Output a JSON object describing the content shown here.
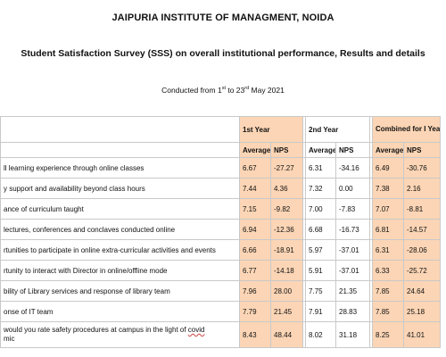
{
  "header": {
    "institute": "JAIPURIA INSTITUTE OF MANAGMENT, NOIDA",
    "survey_title": "Student Satisfaction Survey (SSS) on overall institutional performance, Results and details",
    "conducted_prefix": "Conducted from 1",
    "conducted_sup1": "st",
    "conducted_mid": " to 23",
    "conducted_sup2": "rd",
    "conducted_suffix": " May 2021"
  },
  "colors": {
    "peach": "#fbd5b5",
    "grid": "#c9c9c9"
  },
  "table": {
    "group_headers": {
      "first_year": "1st Year",
      "second_year": "2nd Year",
      "combined": "Combined for I Year and II Year"
    },
    "sub_headers": {
      "average": "Average",
      "nps": "NPS"
    },
    "rows": [
      {
        "param": "ll learning experience through online classes",
        "y1_avg": "6.67",
        "y1_nps": "-27.27",
        "y2_avg": "6.31",
        "y2_nps": "-34.16",
        "c_avg": "6.49",
        "c_nps": "-30.76"
      },
      {
        "param": "y support and availability beyond class hours",
        "y1_avg": "7.44",
        "y1_nps": "4.36",
        "y2_avg": "7.32",
        "y2_nps": "0.00",
        "c_avg": "7.38",
        "c_nps": "2.16"
      },
      {
        "param": "ance of curriculum taught",
        "y1_avg": "7.15",
        "y1_nps": "-9.82",
        "y2_avg": "7.00",
        "y2_nps": "-7.83",
        "c_avg": "7.07",
        "c_nps": "-8.81"
      },
      {
        "param": " lectures, conferences and conclaves conducted online",
        "y1_avg": "6.94",
        "y1_nps": "-12.36",
        "y2_avg": "6.68",
        "y2_nps": "-16.73",
        "c_avg": "6.81",
        "c_nps": "-14.57"
      },
      {
        "param": "rtunities to participate in online extra-curricular activities and events",
        "y1_avg": "6.66",
        "y1_nps": "-18.91",
        "y2_avg": "5.97",
        "y2_nps": "-37.01",
        "c_avg": "6.31",
        "c_nps": "-28.06"
      },
      {
        "param": "rtunity to interact with Director in online/offline mode",
        "y1_avg": "6.77",
        "y1_nps": "-14.18",
        "y2_avg": "5.91",
        "y2_nps": "-37.01",
        "c_avg": "6.33",
        "c_nps": "-25.72"
      },
      {
        "param": "bility of Library services and response of library team",
        "y1_avg": "7.96",
        "y1_nps": "28.00",
        "y2_avg": "7.75",
        "y2_nps": "21.35",
        "c_avg": "7.85",
        "c_nps": "24.64"
      },
      {
        "param": "onse of IT team",
        "y1_avg": "7.79",
        "y1_nps": "21.45",
        "y2_avg": "7.91",
        "y2_nps": "28.83",
        "c_avg": "7.85",
        "c_nps": "25.18"
      },
      {
        "param_line1": "would you rate safety procedures at campus in the light of ",
        "param_underlined": "covid",
        "param_line2": "mic",
        "y1_avg": "8.43",
        "y1_nps": "48.44",
        "y2_avg": "8.02",
        "y2_nps": "31.18",
        "c_avg": "8.25",
        "c_nps": "41.01"
      }
    ]
  }
}
